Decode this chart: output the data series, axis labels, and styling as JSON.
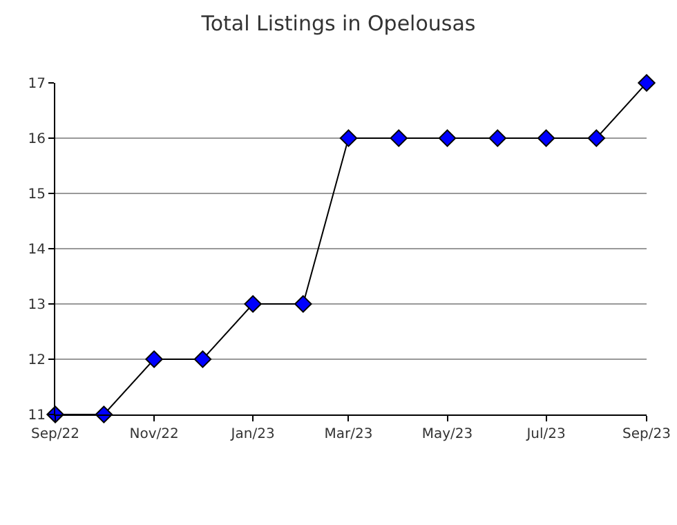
{
  "chart_data": {
    "type": "line",
    "title": "Total Listings in Opelousas",
    "x": [
      "2022-09",
      "2022-10",
      "2022-11",
      "2022-12",
      "2023-01",
      "2023-02",
      "2023-03",
      "2023-04",
      "2023-05",
      "2023-06",
      "2023-07",
      "2023-08",
      "2023-09"
    ],
    "series": [
      {
        "color": "#0000ff",
        "values": [
          11,
          11,
          12,
          12,
          13,
          13,
          16,
          16,
          16,
          16,
          16,
          16,
          17
        ]
      }
    ],
    "xlim": [
      "2022-09",
      "2023-09"
    ],
    "xticks": [
      {
        "value": "2022-09",
        "label": "Sep/22"
      },
      {
        "value": "2022-11",
        "label": "Nov/22"
      },
      {
        "value": "2023-01",
        "label": "Jan/23"
      },
      {
        "value": "2023-03",
        "label": "Mar/23"
      },
      {
        "value": "2023-05",
        "label": "May/23"
      },
      {
        "value": "2023-07",
        "label": "Jul/23"
      },
      {
        "value": "2023-09",
        "label": "Sep/23"
      }
    ],
    "ylim": [
      11,
      17
    ],
    "yticks": [
      11,
      12,
      13,
      14,
      15,
      16,
      17
    ],
    "grid": "y",
    "marker": "diamond",
    "line_style": "solid"
  }
}
